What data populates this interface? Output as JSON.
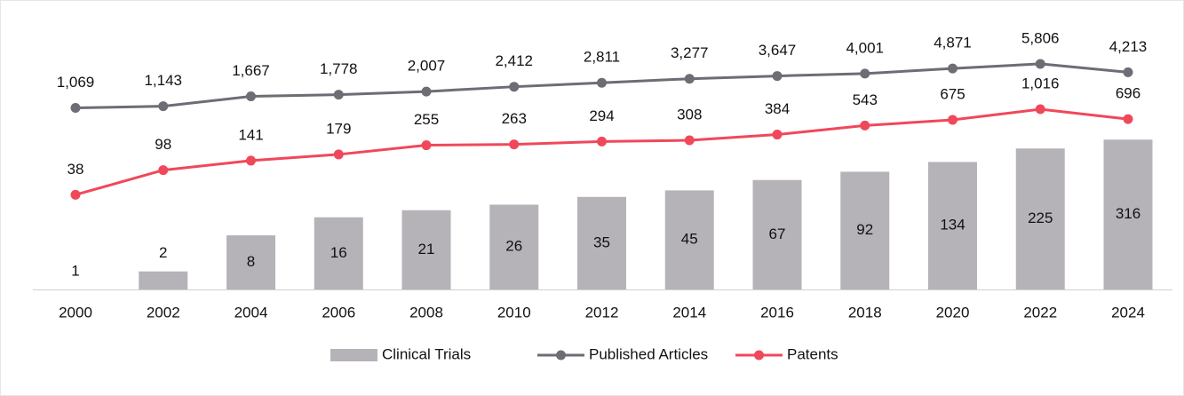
{
  "chart_data": {
    "type": "combo",
    "categories": [
      "2000",
      "2002",
      "2004",
      "2006",
      "2008",
      "2010",
      "2012",
      "2014",
      "2016",
      "2018",
      "2020",
      "2022",
      "2024"
    ],
    "series": [
      {
        "name": "Clinical Trials",
        "type": "bar",
        "color": "#b5b3b7",
        "values": [
          1,
          2,
          8,
          16,
          21,
          26,
          35,
          45,
          67,
          92,
          134,
          225,
          316
        ]
      },
      {
        "name": "Published Articles",
        "type": "line",
        "color": "#6e6c74",
        "values": [
          1069,
          1143,
          1667,
          1778,
          2007,
          2412,
          2811,
          3277,
          3647,
          4001,
          4871,
          5806,
          4213
        ],
        "value_labels": [
          "1,069",
          "1,143",
          "1,667",
          "1,778",
          "2,007",
          "2,412",
          "2,811",
          "3,277",
          "3,647",
          "4,001",
          "4,871",
          "5,806",
          "4,213"
        ]
      },
      {
        "name": "Patents",
        "type": "line",
        "color": "#f0485a",
        "values": [
          38,
          98,
          141,
          179,
          255,
          263,
          294,
          308,
          384,
          543,
          675,
          1016,
          696
        ],
        "value_labels": [
          "38",
          "98",
          "141",
          "179",
          "255",
          "263",
          "294",
          "308",
          "384",
          "543",
          "675",
          "1,016",
          "696"
        ]
      }
    ],
    "ylim": [
      1,
      10000
    ],
    "log_scale": true,
    "legend": "bottom"
  }
}
